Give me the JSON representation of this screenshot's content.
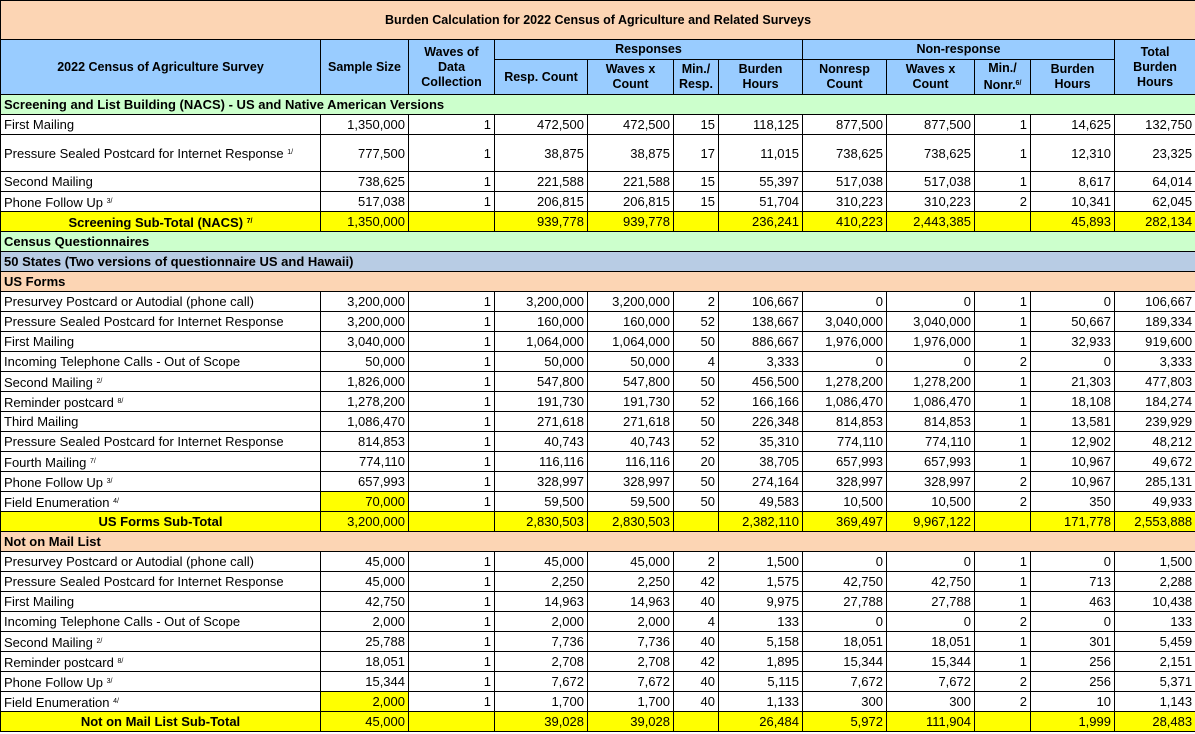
{
  "title": "Burden Calculation for 2022 Census of Agriculture and Related Surveys",
  "title_color": "#fcd5b4",
  "header": {
    "color": "#99ccff",
    "survey": "2022 Census of Agriculture Survey",
    "sample_size": "Sample Size",
    "waves": "Waves of Data Collection",
    "responses": "Responses",
    "nonresponse": "Non-response",
    "total": "Total Burden Hours",
    "sub": [
      "Resp. Count",
      "Waves x Count",
      "Min./ Resp.",
      "Burden Hours",
      "Nonresp Count",
      "Waves x Count",
      "Min./ Nonr.",
      "Burden Hours"
    ],
    "nonr_note": "6/"
  },
  "rows": [
    {
      "kind": "section",
      "label": "Screening and List Building (NACS) - US and Native American Versions",
      "color": "#ccffcc"
    },
    {
      "kind": "data",
      "label": "First Mailing",
      "cells": [
        "1,350,000",
        "1",
        "472,500",
        "472,500",
        "15",
        "118,125",
        "877,500",
        "877,500",
        "1",
        "14,625",
        "132,750"
      ]
    },
    {
      "kind": "data",
      "label": "Pressure Sealed Postcard for Internet Response",
      "note": "1/",
      "cells": [
        "777,500",
        "1",
        "38,875",
        "38,875",
        "17",
        "11,015",
        "738,625",
        "738,625",
        "1",
        "12,310",
        "23,325"
      ]
    },
    {
      "kind": "data",
      "label": "Second Mailing",
      "cells": [
        "738,625",
        "1",
        "221,588",
        "221,588",
        "15",
        "55,397",
        "517,038",
        "517,038",
        "1",
        "8,617",
        "64,014"
      ]
    },
    {
      "kind": "data",
      "label": "Phone Follow Up",
      "note": "3/",
      "cells": [
        "517,038",
        "1",
        "206,815",
        "206,815",
        "15",
        "51,704",
        "310,223",
        "310,223",
        "2",
        "10,341",
        "62,045"
      ]
    },
    {
      "kind": "subtotal",
      "label": "Screening Sub-Total (NACS)",
      "note": "7/",
      "color": "#ffff00",
      "cells": [
        "1,350,000",
        null,
        "939,778",
        "939,778",
        null,
        "236,241",
        "410,223",
        "2,443,385",
        null,
        "45,893",
        "282,134"
      ]
    },
    {
      "kind": "section",
      "label": "Census Questionnaires",
      "color": "#ccffcc"
    },
    {
      "kind": "section",
      "label": "50 States (Two versions of questionnaire US and Hawaii)",
      "color": "#b8cce4"
    },
    {
      "kind": "section",
      "label": "US Forms",
      "color": "#fcd5b4"
    },
    {
      "kind": "data",
      "label": "Presurvey Postcard or Autodial (phone call)",
      "cells": [
        "3,200,000",
        "1",
        "3,200,000",
        "3,200,000",
        "2",
        "106,667",
        "0",
        "0",
        "1",
        "0",
        "106,667"
      ]
    },
    {
      "kind": "data",
      "label": "Pressure Sealed Postcard for Internet Response",
      "cells": [
        "3,200,000",
        "1",
        "160,000",
        "160,000",
        "52",
        "138,667",
        "3,040,000",
        "3,040,000",
        "1",
        "50,667",
        "189,334"
      ]
    },
    {
      "kind": "data",
      "label": "First Mailing",
      "cells": [
        "3,040,000",
        "1",
        "1,064,000",
        "1,064,000",
        "50",
        "886,667",
        "1,976,000",
        "1,976,000",
        "1",
        "32,933",
        "919,600"
      ]
    },
    {
      "kind": "data",
      "label": "Incoming Telephone Calls - Out of Scope",
      "cells": [
        "50,000",
        "1",
        "50,000",
        "50,000",
        "4",
        "3,333",
        "0",
        "0",
        "2",
        "0",
        "3,333"
      ]
    },
    {
      "kind": "data",
      "label": "Second Mailing",
      "note": "2/",
      "cells": [
        "1,826,000",
        "1",
        "547,800",
        "547,800",
        "50",
        "456,500",
        "1,278,200",
        "1,278,200",
        "1",
        "21,303",
        "477,803"
      ]
    },
    {
      "kind": "data",
      "label": "Reminder postcard",
      "note": "8/",
      "cells": [
        "1,278,200",
        "1",
        "191,730",
        "191,730",
        "52",
        "166,166",
        "1,086,470",
        "1,086,470",
        "1",
        "18,108",
        "184,274"
      ]
    },
    {
      "kind": "data",
      "label": "Third Mailing",
      "cells": [
        "1,086,470",
        "1",
        "271,618",
        "271,618",
        "50",
        "226,348",
        "814,853",
        "814,853",
        "1",
        "13,581",
        "239,929"
      ]
    },
    {
      "kind": "data",
      "label": "Pressure Sealed Postcard for Internet Response",
      "cells": [
        "814,853",
        "1",
        "40,743",
        "40,743",
        "52",
        "35,310",
        "774,110",
        "774,110",
        "1",
        "12,902",
        "48,212"
      ]
    },
    {
      "kind": "data",
      "label": "Fourth Mailing",
      "note": "7/",
      "cells": [
        "774,110",
        "1",
        "116,116",
        "116,116",
        "20",
        "38,705",
        "657,993",
        "657,993",
        "1",
        "10,967",
        "49,672"
      ]
    },
    {
      "kind": "data",
      "label": "Phone Follow Up",
      "note": "3/",
      "cells": [
        "657,993",
        "1",
        "328,997",
        "328,997",
        "50",
        "274,164",
        "328,997",
        "328,997",
        "2",
        "10,967",
        "285,131"
      ]
    },
    {
      "kind": "data",
      "label": "Field Enumeration",
      "note": "4/",
      "sample_fill": "#ffff00",
      "cells": [
        "70,000",
        "1",
        "59,500",
        "59,500",
        "50",
        "49,583",
        "10,500",
        "10,500",
        "2",
        "350",
        "49,933"
      ]
    },
    {
      "kind": "subtotal",
      "label": "US Forms Sub-Total",
      "color": "#ffff00",
      "cells": [
        "3,200,000",
        null,
        "2,830,503",
        "2,830,503",
        null,
        "2,382,110",
        "369,497",
        "9,967,122",
        null,
        "171,778",
        "2,553,888"
      ]
    },
    {
      "kind": "section",
      "label": "Not on Mail List",
      "color": "#fcd5b4"
    },
    {
      "kind": "data",
      "label": "Presurvey Postcard or Autodial (phone call)",
      "cells": [
        "45,000",
        "1",
        "45,000",
        "45,000",
        "2",
        "1,500",
        "0",
        "0",
        "1",
        "0",
        "1,500"
      ]
    },
    {
      "kind": "data",
      "label": "Pressure Sealed Postcard for Internet Response",
      "cells": [
        "45,000",
        "1",
        "2,250",
        "2,250",
        "42",
        "1,575",
        "42,750",
        "42,750",
        "1",
        "713",
        "2,288"
      ]
    },
    {
      "kind": "data",
      "label": "First Mailing",
      "cells": [
        "42,750",
        "1",
        "14,963",
        "14,963",
        "40",
        "9,975",
        "27,788",
        "27,788",
        "1",
        "463",
        "10,438"
      ]
    },
    {
      "kind": "data",
      "label": "Incoming Telephone Calls - Out of Scope",
      "cells": [
        "2,000",
        "1",
        "2,000",
        "2,000",
        "4",
        "133",
        "0",
        "0",
        "2",
        "0",
        "133"
      ]
    },
    {
      "kind": "data",
      "label": "Second Mailing",
      "note": "2/",
      "cells": [
        "25,788",
        "1",
        "7,736",
        "7,736",
        "40",
        "5,158",
        "18,051",
        "18,051",
        "1",
        "301",
        "5,459"
      ]
    },
    {
      "kind": "data",
      "label": "Reminder postcard",
      "note": "8/",
      "cells": [
        "18,051",
        "1",
        "2,708",
        "2,708",
        "42",
        "1,895",
        "15,344",
        "15,344",
        "1",
        "256",
        "2,151"
      ]
    },
    {
      "kind": "data",
      "label": "Phone Follow Up",
      "note": "3/",
      "cells": [
        "15,344",
        "1",
        "7,672",
        "7,672",
        "40",
        "5,115",
        "7,672",
        "7,672",
        "2",
        "256",
        "5,371"
      ]
    },
    {
      "kind": "data",
      "label": "Field Enumeration",
      "note": "4/",
      "sample_fill": "#ffff00",
      "cells": [
        "2,000",
        "1",
        "1,700",
        "1,700",
        "40",
        "1,133",
        "300",
        "300",
        "2",
        "10",
        "1,143"
      ]
    },
    {
      "kind": "subtotal",
      "label": "Not on Mail List Sub-Total",
      "color": "#ffff00",
      "cells": [
        "45,000",
        null,
        "39,028",
        "39,028",
        null,
        "26,484",
        "5,972",
        "111,904",
        null,
        "1,999",
        "28,483"
      ]
    }
  ]
}
